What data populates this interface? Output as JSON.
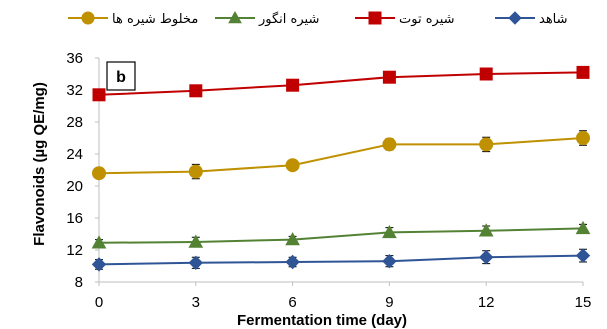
{
  "chart_data": {
    "type": "line",
    "panel_label": "b",
    "xlabel": "Fermentation time (day)",
    "ylabel": "Flavonoids (µg QE/mg)",
    "x": [
      0,
      3,
      6,
      9,
      12,
      15
    ],
    "xlim": [
      0,
      15
    ],
    "ylim": [
      8,
      36
    ],
    "yticks": [
      8,
      12,
      16,
      20,
      24,
      28,
      32,
      36
    ],
    "grid": false,
    "legend_position": "top",
    "series": [
      {
        "name": "شاهد",
        "values": [
          10.2,
          10.4,
          10.5,
          10.6,
          11.1,
          11.3
        ],
        "errors": [
          0.6,
          0.7,
          0.6,
          0.7,
          0.8,
          0.8
        ],
        "color": "#2F5597",
        "marker": "diamond"
      },
      {
        "name": "شیره توت",
        "values": [
          31.4,
          31.9,
          32.6,
          33.6,
          34.0,
          34.2
        ],
        "errors": [
          0.6,
          0.7,
          0.5,
          0.6,
          0.7,
          0.7
        ],
        "color": "#C00000",
        "marker": "square"
      },
      {
        "name": "شیره انگور",
        "values": [
          12.9,
          13.0,
          13.3,
          14.2,
          14.4,
          14.7
        ],
        "errors": [
          0.4,
          0.6,
          0.4,
          0.6,
          0.6,
          0.5
        ],
        "color": "#548235",
        "marker": "triangle"
      },
      {
        "name": "مخلوط شیره ها",
        "values": [
          21.6,
          21.8,
          22.6,
          25.2,
          25.2,
          26.0
        ],
        "errors": [
          0.5,
          0.9,
          0.6,
          0.7,
          0.9,
          0.9
        ],
        "color": "#BF9000",
        "marker": "circle"
      }
    ]
  }
}
